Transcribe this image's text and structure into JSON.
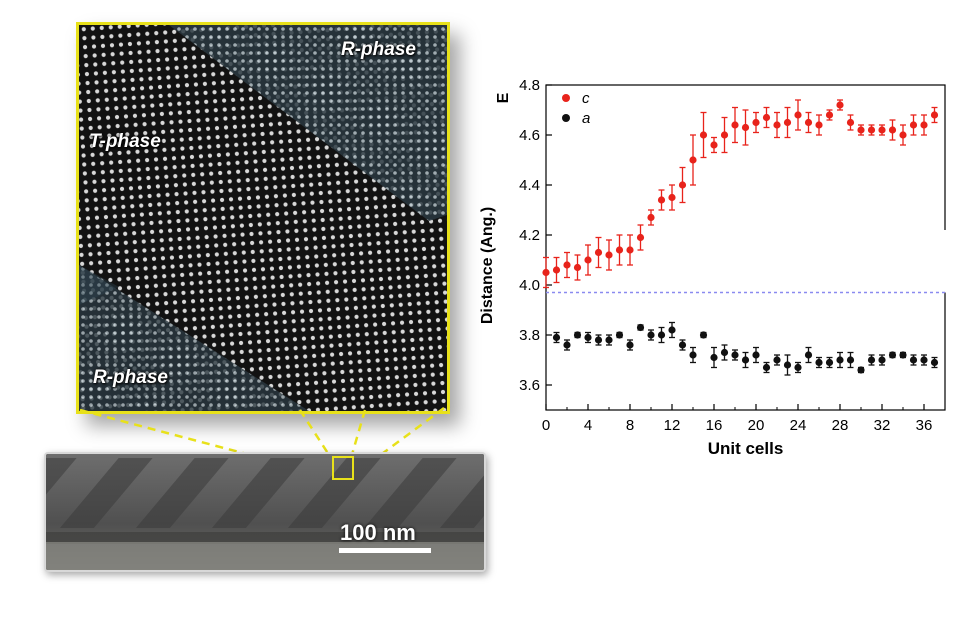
{
  "figure": {
    "stem_labels": [
      "R-phase",
      "T-phase",
      "R-phase"
    ],
    "scale_bar_label": "100 nm",
    "colors": {
      "zoom_box": "#e8e11a",
      "series_c": "#e8231b",
      "series_a": "#111111",
      "reference_line": "#8a8af0"
    }
  },
  "chart_data": {
    "type": "scatter",
    "xlabel": "Unit cells",
    "ylabel": "Distance (Ang.)",
    "corner_label": "E",
    "xlim": [
      0,
      38
    ],
    "ylim": [
      3.5,
      4.8
    ],
    "xticks": [
      0,
      4,
      8,
      12,
      16,
      20,
      24,
      28,
      32,
      36
    ],
    "yticks": [
      3.6,
      3.8,
      4.0,
      4.2,
      4.4,
      4.6,
      4.8
    ],
    "legend_position": "top-left",
    "reference_line_y": 3.97,
    "series": [
      {
        "name": "c",
        "color": "#e8231b",
        "x": [
          0,
          1,
          2,
          3,
          4,
          5,
          6,
          7,
          8,
          9,
          10,
          11,
          12,
          13,
          14,
          15,
          16,
          17,
          18,
          19,
          20,
          21,
          22,
          23,
          24,
          25,
          26,
          27,
          28,
          29,
          30,
          31,
          32,
          33,
          34,
          35,
          36,
          37
        ],
        "y": [
          4.05,
          4.06,
          4.08,
          4.07,
          4.1,
          4.13,
          4.12,
          4.14,
          4.14,
          4.19,
          4.27,
          4.34,
          4.35,
          4.4,
          4.5,
          4.6,
          4.56,
          4.6,
          4.64,
          4.63,
          4.65,
          4.67,
          4.64,
          4.65,
          4.68,
          4.65,
          4.64,
          4.68,
          4.72,
          4.65,
          4.62,
          4.62,
          4.62,
          4.62,
          4.6,
          4.64,
          4.64,
          4.68
        ],
        "err": [
          0.06,
          0.05,
          0.05,
          0.05,
          0.06,
          0.06,
          0.06,
          0.06,
          0.06,
          0.05,
          0.03,
          0.04,
          0.05,
          0.07,
          0.1,
          0.09,
          0.03,
          0.07,
          0.07,
          0.07,
          0.04,
          0.04,
          0.05,
          0.06,
          0.06,
          0.04,
          0.04,
          0.02,
          0.02,
          0.03,
          0.02,
          0.02,
          0.02,
          0.04,
          0.04,
          0.04,
          0.04,
          0.03
        ]
      },
      {
        "name": "a",
        "color": "#111111",
        "x": [
          1,
          2,
          3,
          4,
          5,
          6,
          7,
          8,
          9,
          10,
          11,
          12,
          13,
          14,
          15,
          16,
          17,
          18,
          19,
          20,
          21,
          22,
          23,
          24,
          25,
          26,
          27,
          28,
          29,
          30,
          31,
          32,
          33,
          34,
          35,
          36,
          37
        ],
        "y": [
          3.79,
          3.76,
          3.8,
          3.79,
          3.78,
          3.78,
          3.8,
          3.76,
          3.83,
          3.8,
          3.8,
          3.82,
          3.76,
          3.72,
          3.8,
          3.71,
          3.73,
          3.72,
          3.7,
          3.72,
          3.67,
          3.7,
          3.68,
          3.67,
          3.72,
          3.69,
          3.69,
          3.7,
          3.7,
          3.66,
          3.7,
          3.7,
          3.72,
          3.72,
          3.7,
          3.7,
          3.69
        ],
        "err": [
          0.02,
          0.02,
          0.01,
          0.02,
          0.02,
          0.02,
          0.01,
          0.02,
          0.01,
          0.02,
          0.03,
          0.03,
          0.02,
          0.03,
          0.01,
          0.04,
          0.03,
          0.02,
          0.03,
          0.03,
          0.02,
          0.02,
          0.04,
          0.02,
          0.03,
          0.02,
          0.02,
          0.03,
          0.03,
          0.01,
          0.02,
          0.02,
          0.01,
          0.01,
          0.02,
          0.02,
          0.02
        ]
      }
    ]
  }
}
